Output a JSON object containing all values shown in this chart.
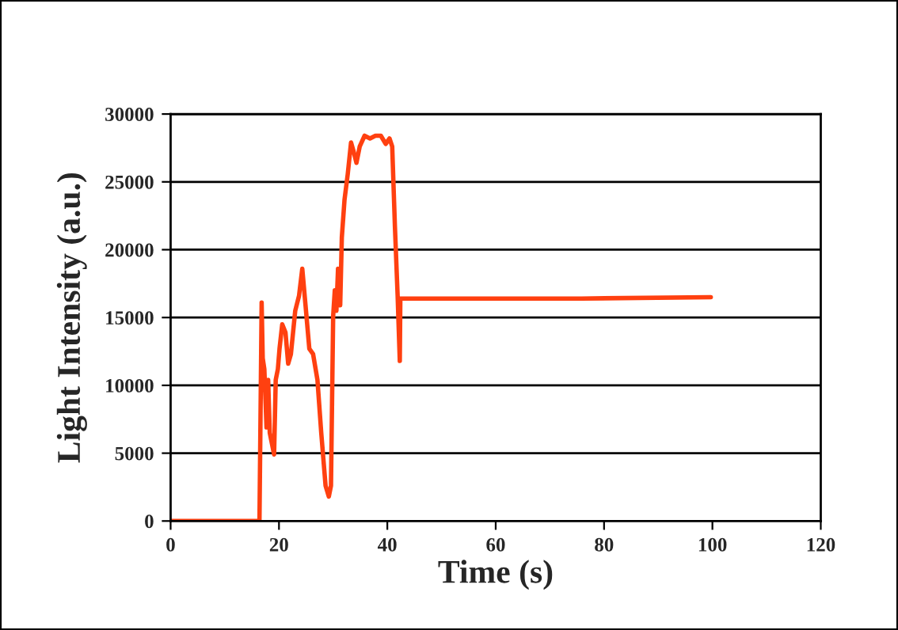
{
  "chart_data": {
    "type": "line",
    "xlabel": "Time (s)",
    "ylabel": "Light Intensity (a.u.)",
    "xlim": [
      0,
      120
    ],
    "xticks": [
      0,
      20,
      40,
      60,
      80,
      100,
      120
    ],
    "ylim": [
      0,
      30000
    ],
    "yticks": [
      0,
      5000,
      10000,
      15000,
      20000,
      25000,
      30000
    ],
    "grid": "y",
    "marker": "none",
    "line_style": "solid",
    "legend": false,
    "series": [
      {
        "color": "#ff4010",
        "x": [
          0,
          16.4,
          16.8,
          17.0,
          17.3,
          17.7,
          18.0,
          18.3,
          19.1,
          19.4,
          19.8,
          20.1,
          20.6,
          21.2,
          21.7,
          22.2,
          23.0,
          23.7,
          24.3,
          24.9,
          25.6,
          26.3,
          27.1,
          27.8,
          28.6,
          29.2,
          29.6,
          30.0,
          30.3,
          30.6,
          30.9,
          31.3,
          31.6,
          32.1,
          32.7,
          33.3,
          33.8,
          34.3,
          34.9,
          35.8,
          36.8,
          37.8,
          38.8,
          39.7,
          40.4,
          40.9,
          41.4,
          41.9,
          42.3,
          42.4,
          43.6,
          75.8,
          99.7
        ],
        "values": [
          0,
          0,
          16100,
          12000,
          11200,
          6900,
          10400,
          6500,
          4900,
          10400,
          11200,
          12700,
          14500,
          13900,
          11600,
          12300,
          15500,
          16600,
          18600,
          15900,
          12700,
          12300,
          10400,
          6500,
          2600,
          1800,
          2600,
          15100,
          17000,
          15500,
          18600,
          15900,
          20900,
          23700,
          25600,
          27900,
          27200,
          26400,
          27600,
          28400,
          28200,
          28400,
          28400,
          27800,
          28200,
          27600,
          21700,
          16600,
          11800,
          16400,
          16400,
          16400,
          16500
        ]
      }
    ]
  }
}
